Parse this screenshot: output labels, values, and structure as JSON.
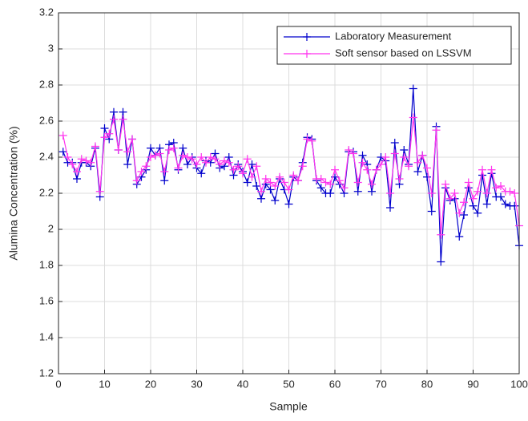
{
  "chart_data": {
    "type": "line",
    "x_label": "Sample",
    "y_label": "Alumina Concentration (%)",
    "x": [
      1,
      2,
      3,
      4,
      5,
      6,
      7,
      8,
      9,
      10,
      11,
      12,
      13,
      14,
      15,
      16,
      17,
      18,
      19,
      20,
      21,
      22,
      23,
      24,
      25,
      26,
      27,
      28,
      29,
      30,
      31,
      32,
      33,
      34,
      35,
      36,
      37,
      38,
      39,
      40,
      41,
      42,
      43,
      44,
      45,
      46,
      47,
      48,
      49,
      50,
      51,
      52,
      53,
      54,
      55,
      56,
      57,
      58,
      59,
      60,
      61,
      62,
      63,
      64,
      65,
      66,
      67,
      68,
      69,
      70,
      71,
      72,
      73,
      74,
      75,
      76,
      77,
      78,
      79,
      80,
      81,
      82,
      83,
      84,
      85,
      86,
      87,
      88,
      89,
      90,
      91,
      92,
      93,
      94,
      95,
      96,
      97,
      98,
      99,
      100
    ],
    "series": [
      {
        "name": "Laboratory Measurement",
        "color": "#0000cc",
        "marker": "+",
        "values": [
          2.43,
          2.37,
          2.37,
          2.28,
          2.37,
          2.37,
          2.35,
          2.45,
          2.18,
          2.56,
          2.5,
          2.65,
          2.44,
          2.65,
          2.36,
          2.5,
          2.25,
          2.29,
          2.33,
          2.45,
          2.41,
          2.45,
          2.27,
          2.47,
          2.48,
          2.33,
          2.45,
          2.36,
          2.4,
          2.34,
          2.31,
          2.38,
          2.37,
          2.42,
          2.34,
          2.35,
          2.4,
          2.3,
          2.36,
          2.32,
          2.26,
          2.36,
          2.24,
          2.17,
          2.25,
          2.22,
          2.16,
          2.28,
          2.22,
          2.14,
          2.29,
          2.27,
          2.37,
          2.51,
          2.5,
          2.27,
          2.23,
          2.2,
          2.2,
          2.29,
          2.25,
          2.2,
          2.43,
          2.43,
          2.21,
          2.41,
          2.36,
          2.21,
          2.33,
          2.4,
          2.38,
          2.12,
          2.48,
          2.25,
          2.44,
          2.36,
          2.78,
          2.32,
          2.41,
          2.29,
          2.1,
          2.57,
          1.82,
          2.23,
          2.16,
          2.17,
          1.96,
          2.08,
          2.23,
          2.13,
          2.09,
          2.3,
          2.14,
          2.31,
          2.18,
          2.18,
          2.14,
          2.13,
          2.13,
          1.91
        ]
      },
      {
        "name": "Soft sensor based on LSSVM",
        "color": "#ff33ee",
        "marker": "+",
        "values": [
          2.52,
          2.4,
          2.36,
          2.32,
          2.39,
          2.38,
          2.37,
          2.46,
          2.21,
          2.51,
          2.53,
          2.61,
          2.44,
          2.61,
          2.43,
          2.5,
          2.27,
          2.32,
          2.35,
          2.4,
          2.41,
          2.42,
          2.32,
          2.44,
          2.45,
          2.34,
          2.41,
          2.4,
          2.39,
          2.36,
          2.4,
          2.37,
          2.4,
          2.39,
          2.36,
          2.38,
          2.37,
          2.33,
          2.35,
          2.31,
          2.39,
          2.29,
          2.35,
          2.21,
          2.28,
          2.26,
          2.24,
          2.29,
          2.26,
          2.22,
          2.3,
          2.27,
          2.35,
          2.5,
          2.49,
          2.28,
          2.28,
          2.26,
          2.25,
          2.33,
          2.27,
          2.23,
          2.44,
          2.42,
          2.26,
          2.37,
          2.33,
          2.25,
          2.33,
          2.36,
          2.4,
          2.2,
          2.42,
          2.28,
          2.4,
          2.35,
          2.62,
          2.37,
          2.41,
          2.34,
          2.2,
          2.55,
          1.97,
          2.25,
          2.17,
          2.2,
          2.09,
          2.15,
          2.26,
          2.17,
          2.21,
          2.33,
          2.2,
          2.33,
          2.23,
          2.24,
          2.21,
          2.21,
          2.2,
          2.02
        ]
      }
    ],
    "xlim": [
      0,
      100
    ],
    "xticks": [
      0,
      10,
      20,
      30,
      40,
      50,
      60,
      70,
      80,
      90,
      100
    ],
    "ylim": [
      1.2,
      3.2
    ],
    "yticks": [
      1.2,
      1.4,
      1.6,
      1.8,
      2,
      2.2,
      2.4,
      2.6,
      2.8,
      3,
      3.2
    ],
    "grid": true,
    "legend": "upper right"
  }
}
